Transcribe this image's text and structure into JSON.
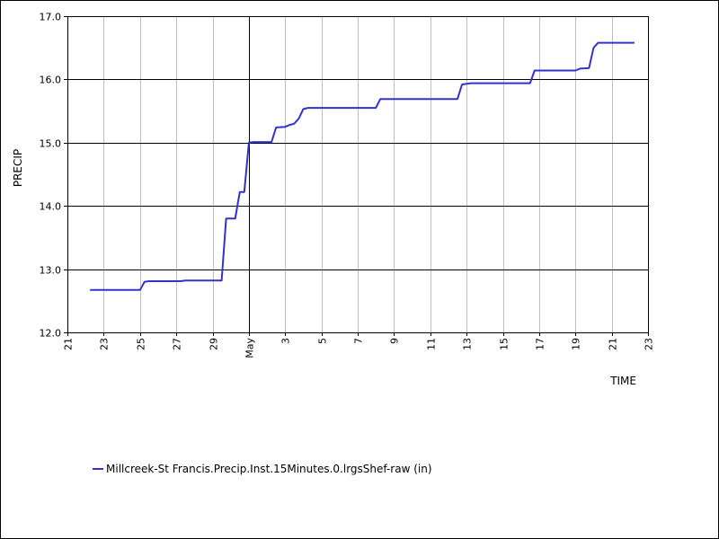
{
  "chart_data": {
    "type": "line",
    "title": "",
    "xlabel": "TIME",
    "ylabel": "PRECIP",
    "ylim": [
      12.0,
      17.0
    ],
    "yticks": [
      "12.0",
      "13.0",
      "14.0",
      "15.0",
      "16.0",
      "17.0"
    ],
    "xlim": [
      "2021-04-21",
      "2021-05-23"
    ],
    "xticks": [
      {
        "date": "2021-04-21",
        "label": "21"
      },
      {
        "date": "2021-04-23",
        "label": "23"
      },
      {
        "date": "2021-04-25",
        "label": "25"
      },
      {
        "date": "2021-04-27",
        "label": "27"
      },
      {
        "date": "2021-04-29",
        "label": "29"
      },
      {
        "date": "2021-05-01",
        "label": "May"
      },
      {
        "date": "2021-05-03",
        "label": "3"
      },
      {
        "date": "2021-05-05",
        "label": "5"
      },
      {
        "date": "2021-05-07",
        "label": "7"
      },
      {
        "date": "2021-05-09",
        "label": "9"
      },
      {
        "date": "2021-05-11",
        "label": "11"
      },
      {
        "date": "2021-05-13",
        "label": "13"
      },
      {
        "date": "2021-05-15",
        "label": "15"
      },
      {
        "date": "2021-05-17",
        "label": "17"
      },
      {
        "date": "2021-05-19",
        "label": "19"
      },
      {
        "date": "2021-05-21",
        "label": "21"
      },
      {
        "date": "2021-05-23",
        "label": "23"
      }
    ],
    "grid": true,
    "legend_position": "bottom-left",
    "series": [
      {
        "name": "Millcreek-St Francis.Precip.Inst.15Minutes.0.lrgsShef-raw (in)",
        "color": "#3333cc",
        "points": [
          [
            "2021-04-22 06:00",
            12.67
          ],
          [
            "2021-04-25 00:00",
            12.67
          ],
          [
            "2021-04-25 06:00",
            12.8
          ],
          [
            "2021-04-25 12:00",
            12.81
          ],
          [
            "2021-04-27 06:00",
            12.81
          ],
          [
            "2021-04-27 12:00",
            12.82
          ],
          [
            "2021-04-29 12:00",
            12.82
          ],
          [
            "2021-04-29 18:00",
            13.8
          ],
          [
            "2021-04-30 06:00",
            13.8
          ],
          [
            "2021-04-30 12:00",
            14.22
          ],
          [
            "2021-04-30 18:00",
            14.22
          ],
          [
            "2021-05-01 00:00",
            15.0
          ],
          [
            "2021-05-01 06:00",
            15.01
          ],
          [
            "2021-05-02 06:00",
            15.01
          ],
          [
            "2021-05-02 12:00",
            15.24
          ],
          [
            "2021-05-03 00:00",
            15.25
          ],
          [
            "2021-05-03 06:00",
            15.28
          ],
          [
            "2021-05-03 12:00",
            15.3
          ],
          [
            "2021-05-03 18:00",
            15.38
          ],
          [
            "2021-05-04 00:00",
            15.53
          ],
          [
            "2021-05-04 06:00",
            15.55
          ],
          [
            "2021-05-08 00:00",
            15.55
          ],
          [
            "2021-05-08 06:00",
            15.69
          ],
          [
            "2021-05-12 12:00",
            15.69
          ],
          [
            "2021-05-12 18:00",
            15.92
          ],
          [
            "2021-05-13 06:00",
            15.94
          ],
          [
            "2021-05-16 12:00",
            15.94
          ],
          [
            "2021-05-16 18:00",
            16.14
          ],
          [
            "2021-05-19 00:00",
            16.14
          ],
          [
            "2021-05-19 06:00",
            16.17
          ],
          [
            "2021-05-19 18:00",
            16.18
          ],
          [
            "2021-05-20 00:00",
            16.5
          ],
          [
            "2021-05-20 06:00",
            16.58
          ],
          [
            "2021-05-22 06:00",
            16.58
          ]
        ]
      }
    ]
  }
}
